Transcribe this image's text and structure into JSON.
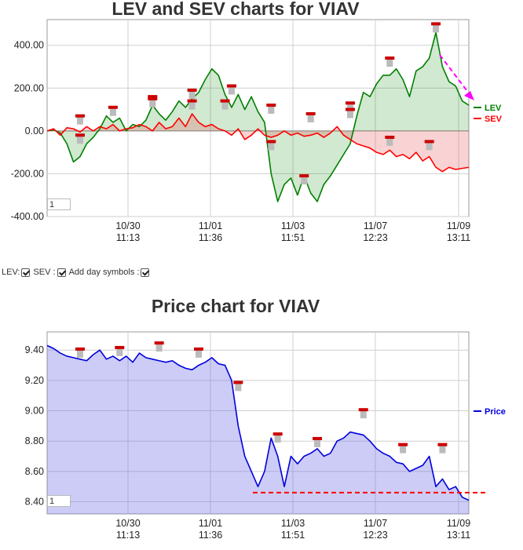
{
  "chart_data": [
    {
      "type": "line",
      "title": "LEV and SEV charts for VIAV",
      "ylim": [
        -400,
        520
      ],
      "y_ticks": [
        "400.00",
        "200.00",
        "0.00",
        "-200.00",
        "-400.00"
      ],
      "x_ticks": [
        {
          "date": "10/30",
          "time": "11:13"
        },
        {
          "date": "11/01",
          "time": "11:36"
        },
        {
          "date": "11/03",
          "time": "11:51"
        },
        {
          "date": "11/07",
          "time": "12:23"
        },
        {
          "date": "11/09",
          "time": "13:11"
        }
      ],
      "legend_position": "right",
      "series": [
        {
          "name": "LEV",
          "color": "#008000",
          "values": [
            0,
            5,
            -10,
            -60,
            -145,
            -120,
            -60,
            -30,
            10,
            70,
            40,
            60,
            0,
            30,
            20,
            50,
            120,
            80,
            50,
            90,
            140,
            110,
            150,
            180,
            240,
            290,
            260,
            170,
            110,
            170,
            100,
            160,
            90,
            40,
            -200,
            -330,
            -250,
            -220,
            -300,
            -210,
            -290,
            -330,
            -250,
            -210,
            -160,
            -110,
            -60,
            70,
            180,
            160,
            220,
            260,
            260,
            290,
            240,
            160,
            280,
            300,
            340,
            460,
            300,
            230,
            210,
            140,
            120
          ]
        },
        {
          "name": "SEV",
          "color": "#ff0000",
          "values": [
            0,
            10,
            -20,
            15,
            10,
            -5,
            20,
            0,
            20,
            10,
            30,
            0,
            10,
            15,
            30,
            20,
            0,
            40,
            10,
            20,
            60,
            20,
            80,
            40,
            20,
            30,
            10,
            0,
            -20,
            10,
            -40,
            -20,
            10,
            -20,
            -30,
            -20,
            0,
            -20,
            -10,
            -25,
            -20,
            -10,
            -30,
            -10,
            20,
            -20,
            -40,
            -60,
            -70,
            -80,
            -100,
            -110,
            -90,
            -120,
            -110,
            -130,
            -100,
            -140,
            -120,
            -170,
            -190,
            -170,
            -180,
            -175,
            -170
          ]
        }
      ],
      "markers": [
        {
          "x": 5,
          "y": -60
        },
        {
          "x": 5,
          "y": 30
        },
        {
          "x": 10,
          "y": 70
        },
        {
          "x": 16,
          "y": 120
        },
        {
          "x": 16,
          "y": 110
        },
        {
          "x": 22,
          "y": 150
        },
        {
          "x": 22,
          "y": 100
        },
        {
          "x": 28,
          "y": 170
        },
        {
          "x": 27,
          "y": 100
        },
        {
          "x": 34,
          "y": 80
        },
        {
          "x": 34,
          "y": -90
        },
        {
          "x": 40,
          "y": 40
        },
        {
          "x": 39,
          "y": -250
        },
        {
          "x": 46,
          "y": 90
        },
        {
          "x": 46,
          "y": 60
        },
        {
          "x": 52,
          "y": -70
        },
        {
          "x": 52,
          "y": 300
        },
        {
          "x": 58,
          "y": -90
        },
        {
          "x": 59,
          "y": 460
        }
      ],
      "page_input": "1"
    },
    {
      "type": "area",
      "title": "Price chart for VIAV",
      "ylim": [
        8.32,
        9.52
      ],
      "y_ticks": [
        "9.40",
        "9.20",
        "9.00",
        "8.80",
        "8.60",
        "8.40"
      ],
      "x_ticks": [
        {
          "date": "10/30",
          "time": "11:13"
        },
        {
          "date": "11/01",
          "time": "11:36"
        },
        {
          "date": "11/03",
          "time": "11:51"
        },
        {
          "date": "11/07",
          "time": "12:23"
        },
        {
          "date": "11/09",
          "time": "13:11"
        }
      ],
      "legend_position": "right",
      "series": [
        {
          "name": "Price",
          "color": "#0000dd",
          "values": [
            9.43,
            9.41,
            9.38,
            9.36,
            9.35,
            9.34,
            9.33,
            9.37,
            9.4,
            9.34,
            9.36,
            9.33,
            9.36,
            9.32,
            9.38,
            9.35,
            9.34,
            9.33,
            9.32,
            9.33,
            9.3,
            9.28,
            9.27,
            9.3,
            9.32,
            9.35,
            9.31,
            9.3,
            9.2,
            8.9,
            8.7,
            8.6,
            8.5,
            8.6,
            8.82,
            8.7,
            8.5,
            8.7,
            8.65,
            8.7,
            8.72,
            8.75,
            8.7,
            8.72,
            8.8,
            8.82,
            8.86,
            8.85,
            8.84,
            8.8,
            8.75,
            8.72,
            8.7,
            8.66,
            8.65,
            8.6,
            8.62,
            8.64,
            8.7,
            8.5,
            8.55,
            8.48,
            8.5,
            8.43,
            8.41
          ]
        }
      ],
      "reference_line": {
        "y": 8.46,
        "color": "#ff0000"
      },
      "markers": [
        {
          "x": 5,
          "y": 9.35
        },
        {
          "x": 11,
          "y": 9.36
        },
        {
          "x": 17,
          "y": 9.39
        },
        {
          "x": 23,
          "y": 9.35
        },
        {
          "x": 29,
          "y": 9.13
        },
        {
          "x": 35,
          "y": 8.79
        },
        {
          "x": 41,
          "y": 8.76
        },
        {
          "x": 48,
          "y": 8.95
        },
        {
          "x": 54,
          "y": 8.72
        },
        {
          "x": 60,
          "y": 8.72
        }
      ],
      "page_input": "1"
    }
  ],
  "controls": {
    "lev_label": "LEV:",
    "sev_label": "SEV :",
    "day_symbols_label": "Add day symbols :"
  }
}
